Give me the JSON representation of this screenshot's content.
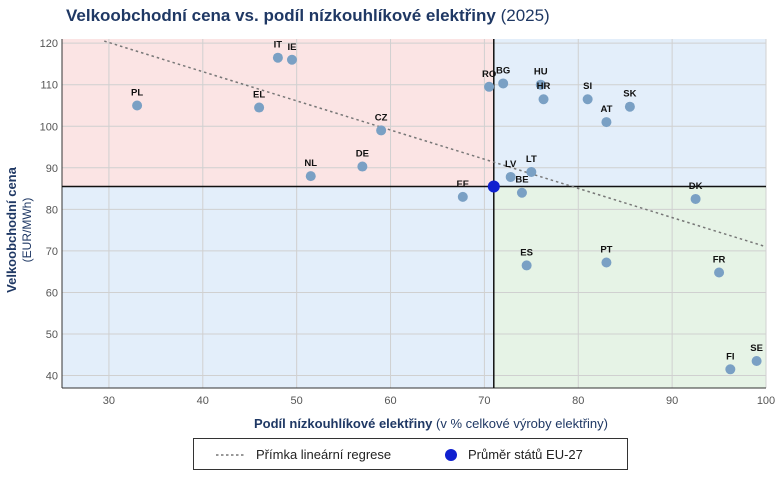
{
  "title": {
    "main": "Velkoobchodní cena vs. podíl nízkouhlíkové elektřiny",
    "suffix": "(2025)"
  },
  "colors": {
    "top_left_quadrant": "#fbe4e4",
    "top_right_quadrant": "#e3eefa",
    "bottom_left_quadrant": "#e3eefa",
    "bottom_right_quadrant": "#e6f3e6",
    "points": "#7aa0c4",
    "average": "#1020d0",
    "regression": "#777777",
    "title": "#1f3864"
  },
  "chart_data": {
    "type": "scatter",
    "xlabel": {
      "bold": "Podíl nízkouhlíkové elektřiny",
      "normal": "(v % celkové výroby elektřiny)"
    },
    "ylabel": {
      "bold": "Velkoobchodní cena",
      "normal": "(EUR/MWh)"
    },
    "xlim": [
      25,
      100
    ],
    "ylim": [
      37,
      121
    ],
    "xticks": [
      30,
      40,
      50,
      60,
      70,
      80,
      90,
      100
    ],
    "yticks": [
      40,
      50,
      60,
      70,
      80,
      90,
      100,
      110,
      120
    ],
    "grid": true,
    "points": [
      {
        "label": "IT",
        "x": 48,
        "y": 116.5
      },
      {
        "label": "IE",
        "x": 49.5,
        "y": 116
      },
      {
        "label": "PL",
        "x": 33,
        "y": 105
      },
      {
        "label": "EL",
        "x": 46,
        "y": 104.5
      },
      {
        "label": "CZ",
        "x": 59,
        "y": 99
      },
      {
        "label": "NL",
        "x": 51.5,
        "y": 88
      },
      {
        "label": "DE",
        "x": 57,
        "y": 90.3
      },
      {
        "label": "EE",
        "x": 67.7,
        "y": 83
      },
      {
        "label": "RO",
        "x": 70.5,
        "y": 109.5
      },
      {
        "label": "BG",
        "x": 72,
        "y": 110.3
      },
      {
        "label": "HU",
        "x": 76,
        "y": 110
      },
      {
        "label": "HR",
        "x": 76.3,
        "y": 106.5
      },
      {
        "label": "SI",
        "x": 81,
        "y": 106.5
      },
      {
        "label": "SK",
        "x": 85.5,
        "y": 104.7
      },
      {
        "label": "AT",
        "x": 83,
        "y": 101
      },
      {
        "label": "LV",
        "x": 72.8,
        "y": 87.8
      },
      {
        "label": "LT",
        "x": 75,
        "y": 89
      },
      {
        "label": "BE",
        "x": 74,
        "y": 84
      },
      {
        "label": "DK",
        "x": 92.5,
        "y": 82.5
      },
      {
        "label": "ES",
        "x": 74.5,
        "y": 66.5
      },
      {
        "label": "PT",
        "x": 83,
        "y": 67.2
      },
      {
        "label": "FR",
        "x": 95,
        "y": 64.8
      },
      {
        "label": "FI",
        "x": 96.2,
        "y": 41.5
      },
      {
        "label": "SE",
        "x": 99,
        "y": 43.5
      }
    ],
    "average": {
      "x": 71,
      "y": 85.5
    },
    "regression": {
      "x": [
        29.5,
        100
      ],
      "y": [
        120.5,
        71
      ]
    }
  },
  "legend": {
    "regression_label": "Přímka lineární regrese",
    "average_label": "Průměr států EU-27"
  }
}
